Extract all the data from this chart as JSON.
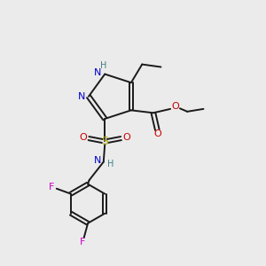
{
  "bg_color": "#ebebeb",
  "bond_color": "#1a1a1a",
  "colors": {
    "N": "#0000cc",
    "O": "#cc0000",
    "S": "#aaaa00",
    "F": "#cc00cc",
    "H": "#408080",
    "C": "#1a1a1a"
  }
}
